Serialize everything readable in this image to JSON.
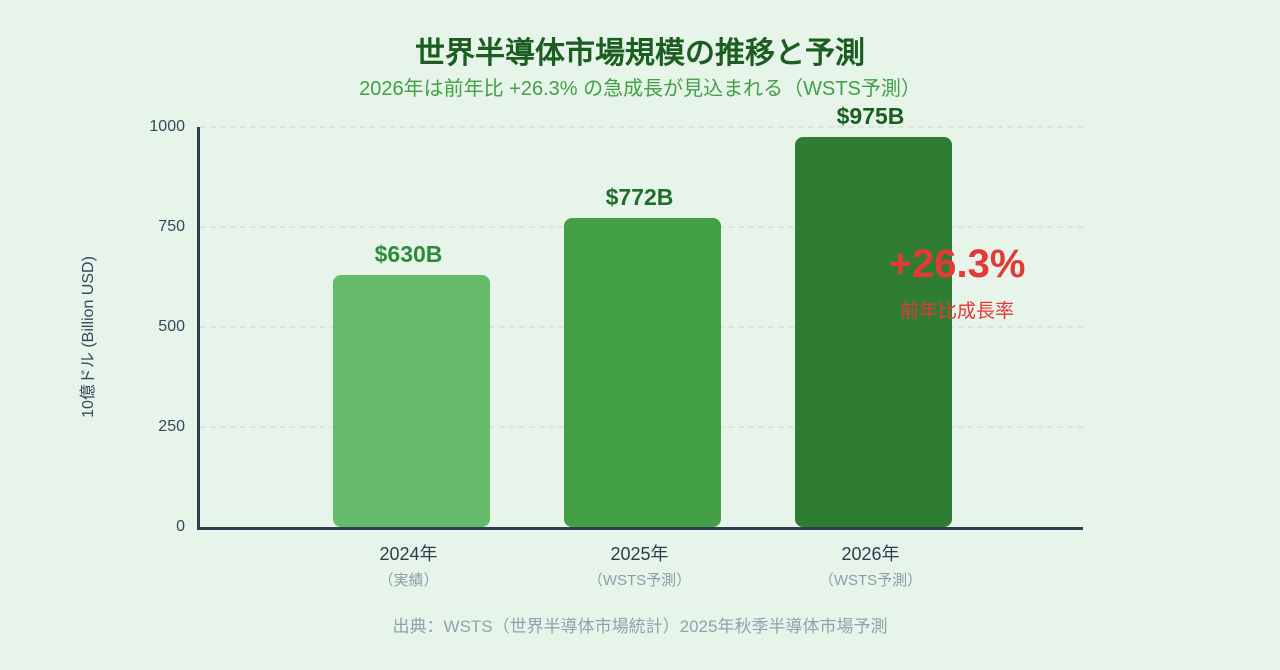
{
  "page": {
    "background_color": "#e6f4e9"
  },
  "header": {
    "title": "世界半導体市場規模の推移と予測",
    "title_color": "#1b5e20",
    "subtitle": "2026年は前年比 +26.3% の急成長が見込まれる（WSTS予測）",
    "subtitle_color": "#43a047"
  },
  "chart_data": {
    "type": "bar",
    "title": "世界半導体市場規模の推移と予測",
    "subtitle": "2026年は前年比 +26.3% の急成長が見込まれる（WSTS予測）",
    "categories": [
      "2024年",
      "2025年",
      "2026年"
    ],
    "category_sublabels": [
      "（実績）",
      "（WSTS予測）",
      "（WSTS予測）"
    ],
    "values": [
      630,
      772,
      975
    ],
    "value_labels": [
      "$630B",
      "$772B",
      "$975B"
    ],
    "bar_colors": [
      "#66bb6a",
      "#43a047",
      "#2e7d32"
    ],
    "value_label_colors": [
      "#2e8b3d",
      "#1f6f2b",
      "#1b5e20"
    ],
    "ylabel": "10億ドル (Billion USD)",
    "ylim": [
      0,
      1000
    ],
    "yticks": [
      0,
      250,
      500,
      750,
      1000
    ],
    "grid": "horizontal dashed",
    "axis_color": "#2c3e50",
    "gridline_color": "#d6e8da",
    "annotation": {
      "text": "+26.3%",
      "subtext": "前年比成長率",
      "color": "#e53935"
    }
  },
  "footer": {
    "source": "出典：WSTS（世界半導体市場統計）2025年秋季半導体市場予測"
  }
}
